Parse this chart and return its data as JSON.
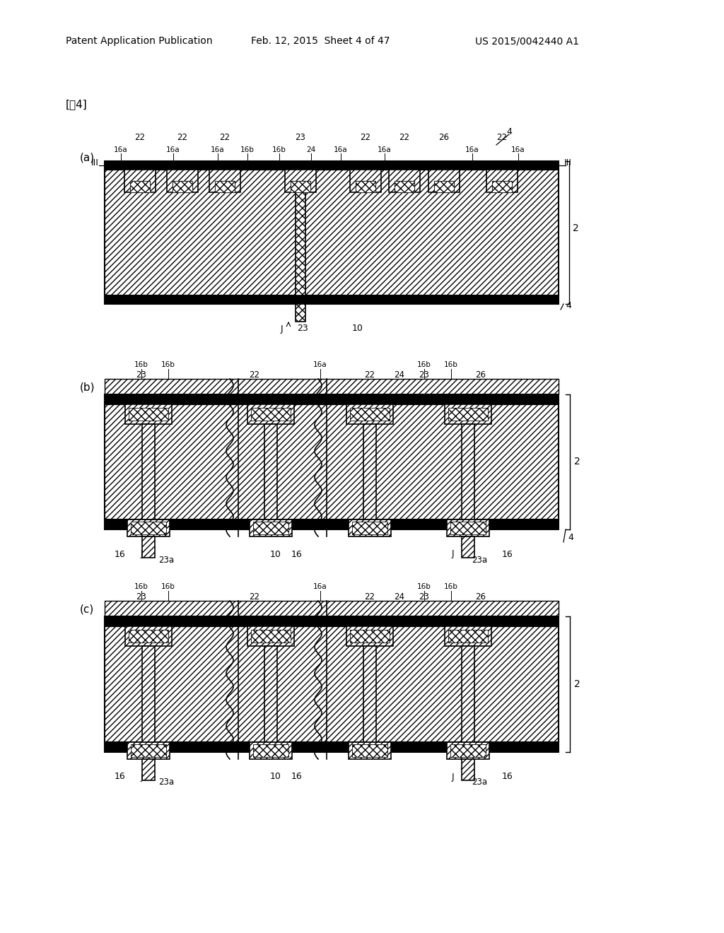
{
  "title_left": "Patent Application Publication",
  "title_mid": "Feb. 12, 2015  Sheet 4 of 47",
  "title_right": "US 2015/0042440 A1",
  "fig_label": "[围4]",
  "bg_color": "#ffffff"
}
